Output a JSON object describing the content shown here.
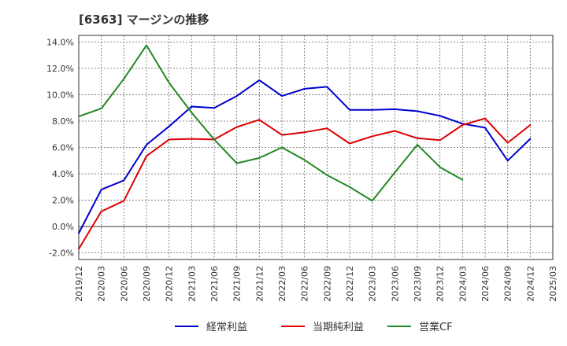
{
  "chart_data": {
    "type": "line",
    "title": "[6363]  マージンの推移",
    "xlabel": "",
    "ylabel": "",
    "x": [
      "2019/12",
      "2020/03",
      "2020/06",
      "2020/09",
      "2020/12",
      "2021/03",
      "2021/06",
      "2021/09",
      "2021/12",
      "2022/03",
      "2022/06",
      "2022/09",
      "2022/12",
      "2023/03",
      "2023/06",
      "2023/09",
      "2023/12",
      "2024/03",
      "2024/06",
      "2024/09",
      "2024/12",
      "2025/03"
    ],
    "ylim": [
      -2.5,
      14.5
    ],
    "yticks": [
      -2.0,
      0.0,
      2.0,
      4.0,
      6.0,
      8.0,
      10.0,
      12.0,
      14.0
    ],
    "ytick_labels": [
      "-2.0%",
      "0.0%",
      "2.0%",
      "4.0%",
      "6.0%",
      "8.0%",
      "10.0%",
      "12.0%",
      "14.0%"
    ],
    "grid": true,
    "legend_position": "bottom",
    "series": [
      {
        "name": "経常利益",
        "color": "#0000cc",
        "values": [
          -0.5,
          2.8,
          3.5,
          6.2,
          7.6,
          9.1,
          9.0,
          9.9,
          11.1,
          9.9,
          10.45,
          10.6,
          8.85,
          8.85,
          8.9,
          8.75,
          8.4,
          7.8,
          7.5,
          5.0,
          6.65,
          null
        ]
      },
      {
        "name": "当期純利益",
        "color": "#dd0000",
        "values": [
          -1.7,
          1.15,
          1.95,
          5.35,
          6.6,
          6.65,
          6.6,
          7.55,
          8.1,
          6.95,
          7.15,
          7.45,
          6.3,
          6.85,
          7.25,
          6.7,
          6.55,
          7.7,
          8.2,
          6.35,
          7.7,
          null
        ]
      },
      {
        "name": "営業CF",
        "color": "#228822",
        "values": [
          8.35,
          8.95,
          11.2,
          13.75,
          10.9,
          8.65,
          6.6,
          4.8,
          5.2,
          6.0,
          5.05,
          3.9,
          3.0,
          1.95,
          4.1,
          6.2,
          4.5,
          3.55,
          null,
          null,
          null,
          null
        ]
      }
    ]
  }
}
